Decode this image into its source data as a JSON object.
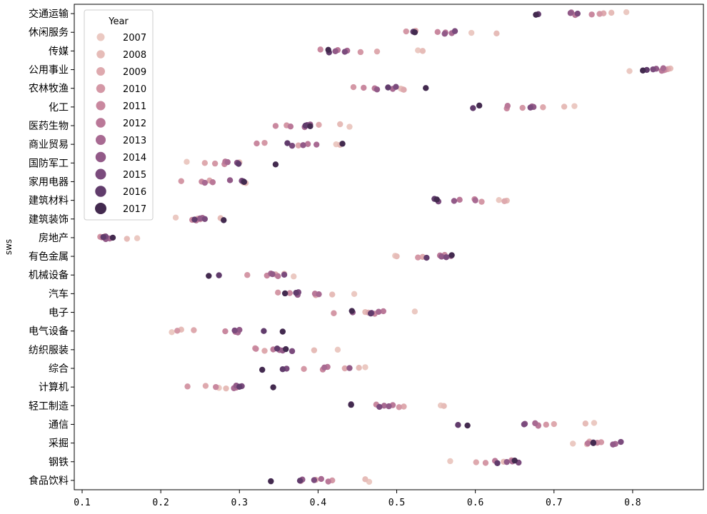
{
  "chart_data": {
    "type": "scatter",
    "title": "",
    "xlabel": "",
    "ylabel": "sws",
    "xlim": [
      0.09,
      0.89
    ],
    "x_ticks": [
      "0.1",
      "0.2",
      "0.3",
      "0.4",
      "0.5",
      "0.6",
      "0.7",
      "0.8"
    ],
    "grid": false,
    "legend": {
      "title": "Year",
      "placement": "top-left"
    },
    "categories": [
      "交通运输",
      "休闲服务",
      "传媒",
      "公用事业",
      "农林牧渔",
      "化工",
      "医药生物",
      "商业贸易",
      "国防军工",
      "家用电器",
      "建筑材料",
      "建筑装饰",
      "房地产",
      "有色金属",
      "机械设备",
      "汽车",
      "电子",
      "电气设备",
      "纺织服装",
      "综合",
      "计算机",
      "轻工制造",
      "通信",
      "采掘",
      "钢铁",
      "食品饮料"
    ],
    "series": [
      {
        "name": "2007",
        "color": "#ebc9c2",
        "values": [
          0.792,
          0.595,
          0.527,
          0.796,
          0.505,
          0.726,
          0.44,
          0.423,
          0.233,
          0.305,
          0.63,
          0.219,
          0.17,
          0.498,
          0.369,
          0.446,
          0.523,
          0.214,
          0.425,
          0.46,
          0.274,
          0.556,
          0.751,
          0.724,
          0.568,
          0.465
        ]
      },
      {
        "name": "2008",
        "color": "#e6bcb8",
        "values": [
          0.773,
          0.627,
          0.533,
          0.848,
          0.507,
          0.713,
          0.428,
          0.428,
          0.3,
          0.308,
          0.64,
          0.276,
          0.157,
          0.5,
          0.357,
          0.418,
          0.46,
          0.226,
          0.395,
          0.452,
          0.283,
          0.56,
          0.74,
          0.742,
          0.636,
          0.46
        ]
      },
      {
        "name": "2009",
        "color": "#dea9ae",
        "values": [
          0.763,
          0.524,
          0.475,
          0.845,
          0.509,
          0.686,
          0.401,
          0.375,
          0.256,
          0.262,
          0.637,
          0.247,
          0.129,
          0.533,
          0.346,
          0.397,
          0.464,
          0.242,
          0.332,
          0.434,
          0.257,
          0.509,
          0.7,
          0.745,
          0.601,
          0.397
        ]
      },
      {
        "name": "2010",
        "color": "#d498a6",
        "values": [
          0.758,
          0.512,
          0.454,
          0.842,
          0.445,
          0.66,
          0.36,
          0.332,
          0.269,
          0.226,
          0.608,
          0.25,
          0.123,
          0.527,
          0.31,
          0.349,
          0.42,
          0.221,
          0.32,
          0.382,
          0.234,
          0.503,
          0.69,
          0.76,
          0.613,
          0.418
        ]
      },
      {
        "name": "2011",
        "color": "#c9889f",
        "values": [
          0.748,
          0.552,
          0.403,
          0.84,
          0.458,
          0.64,
          0.346,
          0.322,
          0.281,
          0.252,
          0.599,
          0.24,
          0.125,
          0.561,
          0.335,
          0.364,
          0.472,
          0.282,
          0.321,
          0.406,
          0.27,
          0.474,
          0.68,
          0.755,
          0.646,
          0.378
        ]
      },
      {
        "name": "2012",
        "color": "#ba7898",
        "values": [
          0.727,
          0.562,
          0.425,
          0.837,
          0.472,
          0.641,
          0.365,
          0.387,
          0.282,
          0.266,
          0.58,
          0.245,
          0.131,
          0.555,
          0.349,
          0.396,
          0.483,
          0.295,
          0.343,
          0.412,
          0.296,
          0.495,
          0.68,
          0.743,
          0.625,
          0.413
        ]
      },
      {
        "name": "2013",
        "color": "#a86a92",
        "values": [
          0.722,
          0.57,
          0.437,
          0.839,
          0.495,
          0.672,
          0.383,
          0.398,
          0.285,
          0.256,
          0.6,
          0.253,
          0.135,
          0.569,
          0.34,
          0.401,
          0.477,
          0.298,
          0.351,
          0.408,
          0.293,
          0.484,
          0.676,
          0.778,
          0.647,
          0.404
        ]
      },
      {
        "name": "2014",
        "color": "#925a88",
        "values": [
          0.721,
          0.561,
          0.422,
          0.83,
          0.475,
          0.674,
          0.39,
          0.381,
          0.297,
          0.288,
          0.573,
          0.25,
          0.13,
          0.557,
          0.342,
          0.374,
          0.444,
          0.3,
          0.355,
          0.44,
          0.296,
          0.49,
          0.663,
          0.775,
          0.64,
          0.38
        ]
      },
      {
        "name": "2015",
        "color": "#7b4b7d",
        "values": [
          0.73,
          0.574,
          0.434,
          0.826,
          0.499,
          0.67,
          0.386,
          0.367,
          0.298,
          0.303,
          0.553,
          0.256,
          0.13,
          0.563,
          0.357,
          0.375,
          0.468,
          0.294,
          0.367,
          0.36,
          0.303,
          0.478,
          0.662,
          0.785,
          0.655,
          0.395
        ]
      },
      {
        "name": "2016",
        "color": "#613c6c",
        "values": [
          0.68,
          0.521,
          0.414,
          0.818,
          0.489,
          0.597,
          0.384,
          0.361,
          0.299,
          0.305,
          0.548,
          0.243,
          0.127,
          0.538,
          0.274,
          0.372,
          0.467,
          0.331,
          0.348,
          0.355,
          0.3,
          0.442,
          0.578,
          0.75,
          0.628,
          0.377
        ]
      },
      {
        "name": "2017",
        "color": "#432a4f",
        "values": [
          0.677,
          0.523,
          0.413,
          0.813,
          0.537,
          0.605,
          0.39,
          0.431,
          0.346,
          0.306,
          0.551,
          0.28,
          0.139,
          0.57,
          0.261,
          0.358,
          0.443,
          0.355,
          0.359,
          0.329,
          0.343,
          0.442,
          0.59,
          0.75,
          0.65,
          0.34
        ]
      }
    ]
  }
}
